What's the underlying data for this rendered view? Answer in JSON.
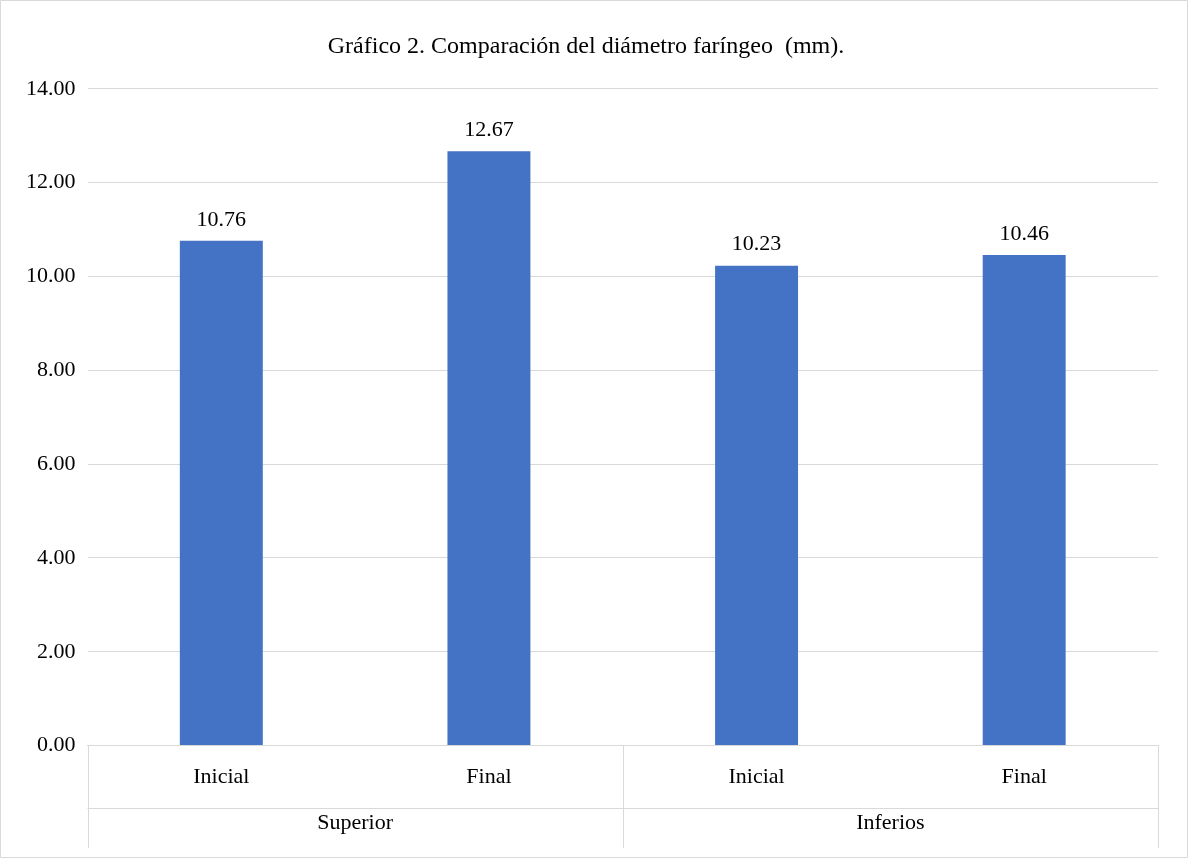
{
  "chart_data": {
    "type": "bar",
    "title": "Gráfico 2. Comparación del diámetro faríngeo  (mm).",
    "categories": [
      "Inicial",
      "Final",
      "Inicial",
      "Final"
    ],
    "values": [
      10.76,
      12.67,
      10.23,
      10.46
    ],
    "color": "#4472c4",
    "ylim": [
      0,
      14
    ],
    "yticks": [
      {
        "value": 0,
        "label": "0.00"
      },
      {
        "value": 2,
        "label": "2.00"
      },
      {
        "value": 4,
        "label": "4.00"
      },
      {
        "value": 6,
        "label": "6.00"
      },
      {
        "value": 8,
        "label": "8.00"
      },
      {
        "value": 10,
        "label": "10.00"
      },
      {
        "value": 12,
        "label": "12.00"
      },
      {
        "value": 14,
        "label": "14.00"
      }
    ],
    "grid": "y",
    "data_labels": true,
    "legend": false,
    "annotations": [
      "Superior",
      "Inferios"
    ]
  }
}
